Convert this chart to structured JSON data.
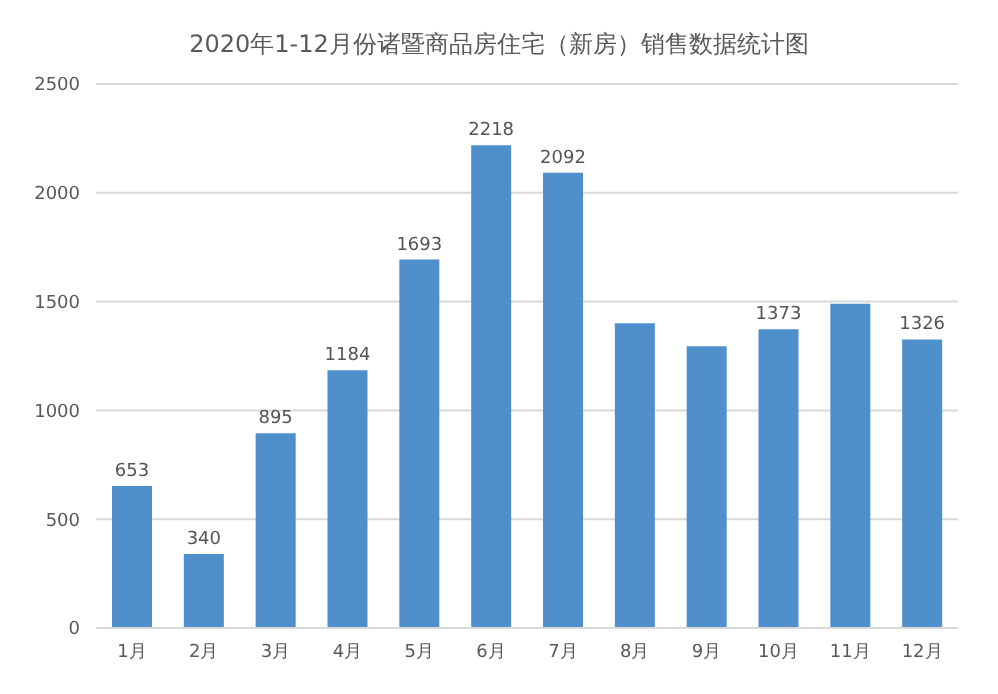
{
  "chart_data": {
    "type": "bar",
    "title": "2020年1-12月份诸暨商品房住宅（新房）销售数据统计图",
    "categories": [
      "1月",
      "2月",
      "3月",
      "4月",
      "5月",
      "6月",
      "7月",
      "8月",
      "9月",
      "10月",
      "11月",
      "12月"
    ],
    "values": [
      653,
      340,
      895,
      1184,
      1693,
      2218,
      2092,
      1400,
      1295,
      1373,
      1490,
      1326
    ],
    "value_labels": [
      "653",
      "340",
      "895",
      "1184",
      "1693",
      "2218",
      "2092",
      null,
      null,
      "1373",
      null,
      "1326"
    ],
    "color": "#4e8fcc",
    "ylim": [
      0,
      2500
    ],
    "yticks": [
      0,
      500,
      1000,
      1500,
      2000,
      2500
    ],
    "grid": "y"
  }
}
